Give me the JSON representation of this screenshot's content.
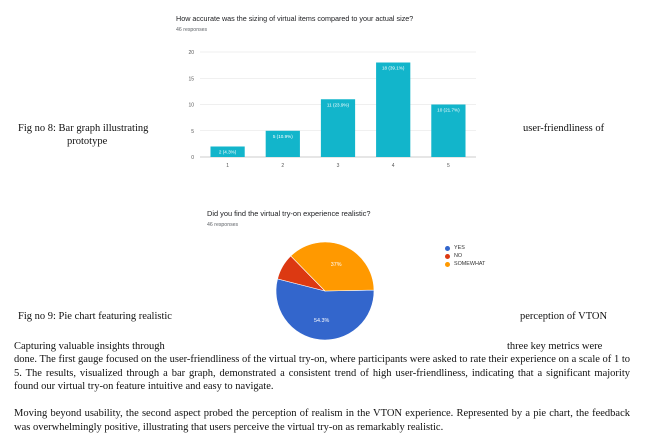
{
  "fig8": {
    "caption_left": "Fig no 8: Bar graph illustrating",
    "caption_left_2": "prototype",
    "caption_right": "user-friendliness of",
    "chart_title": "How accurate was the sizing of virtual items compared to your actual size?",
    "responses": "46 responses"
  },
  "fig9": {
    "caption_left": "Fig no 9: Pie chart featuring realistic",
    "caption_right": "perception of VTON",
    "chart_title": "Did you find the virtual try-on experience realistic?",
    "responses": "46 responses"
  },
  "body": {
    "line1_left": "Capturing valuable insights through",
    "line1_right": "three key metrics were",
    "rest": "done. The first gauge focused on the user-friendliness of the virtual try-on, where participants were asked to rate their experience on a scale of 1 to 5. The results, visualized through a bar graph, demonstrated a consistent trend of high user-friendliness, indicating that a significant majority found our virtual try-on feature intuitive and easy to navigate.",
    "para2": "Moving beyond usability, the second aspect probed the perception of realism in the VTON experience. Represented by a pie chart, the feedback was overwhelmingly positive, illustrating that users perceive the virtual try-on as remarkably realistic."
  },
  "colors": {
    "bar": "#12b5cb",
    "yes": "#3366cc",
    "no": "#dc3912",
    "somewhat": "#ff9900"
  },
  "chart_data": [
    {
      "type": "bar",
      "title": "How accurate was the sizing of virtual items compared to your actual size?",
      "categories": [
        "1",
        "2",
        "3",
        "4",
        "5"
      ],
      "values": [
        2,
        5,
        11,
        18,
        10
      ],
      "labels": [
        "2 (4.3%)",
        "5 (10.9%)",
        "11 (23.9%)",
        "18 (39.1%)",
        "10 (21.7%)"
      ],
      "yticks": [
        "0",
        "5",
        "10",
        "15",
        "20"
      ],
      "ylim": [
        0,
        20
      ],
      "grid": true
    },
    {
      "type": "pie",
      "title": "Did you find the virtual try-on experience realistic?",
      "slices": [
        {
          "name": "YES",
          "value": 54.3,
          "label": "54.3%"
        },
        {
          "name": "NO",
          "value": 8.7,
          "label": ""
        },
        {
          "name": "SOMEWHAT",
          "value": 37.0,
          "label": "37%"
        }
      ],
      "legend": "right"
    }
  ]
}
